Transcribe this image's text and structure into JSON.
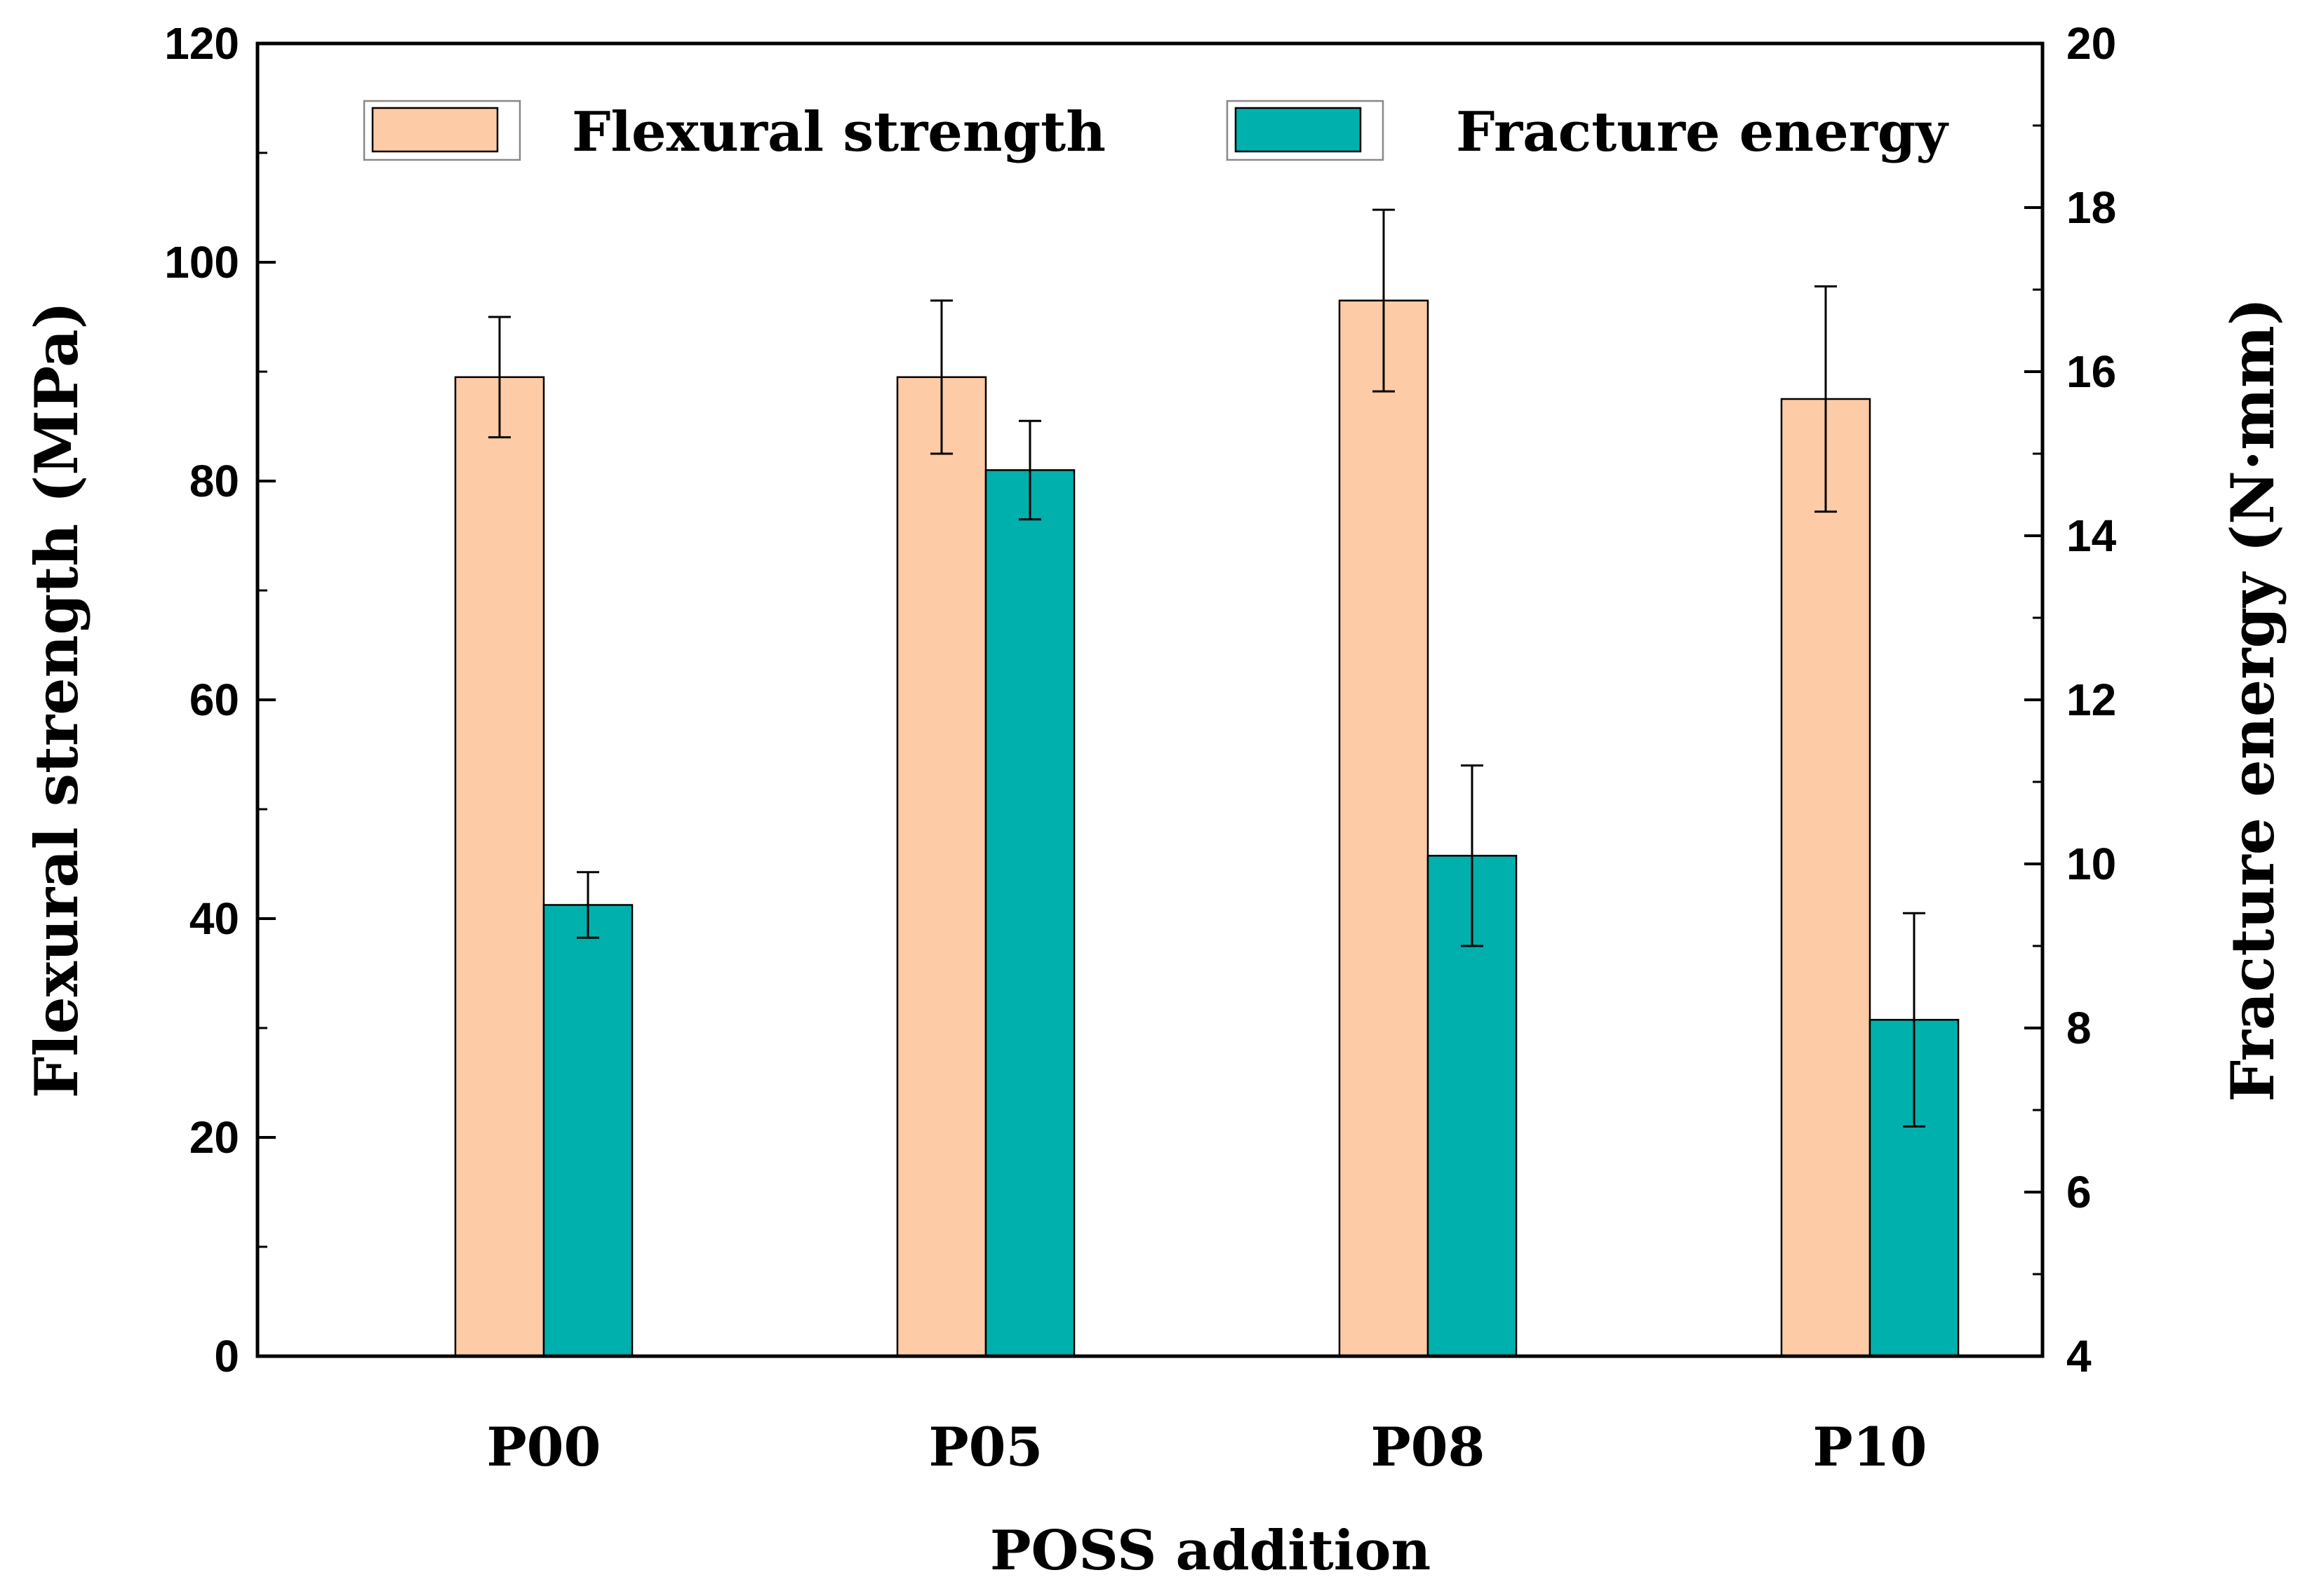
{
  "chart_data": {
    "type": "bar",
    "categories": [
      "P00",
      "P05",
      "P08",
      "P10"
    ],
    "xlabel": "POSS addition",
    "ylabel_left": "Flexural strength (MPa)",
    "ylabel_right": "Fracture energy (N·mm)",
    "ylim_left": [
      0,
      120
    ],
    "ylim_right": [
      4,
      20
    ],
    "yticks_left": [
      0,
      20,
      40,
      60,
      80,
      100,
      120
    ],
    "yticks_right": [
      4,
      6,
      8,
      10,
      12,
      14,
      16,
      18,
      20
    ],
    "legend_position": "top",
    "series": [
      {
        "name": "Flexural strength",
        "axis": "left",
        "color": "#FDCBA6",
        "values": [
          89.5,
          89.5,
          96.5,
          87.5
        ],
        "error": [
          5.5,
          7.0,
          8.3,
          10.3
        ]
      },
      {
        "name": "Fracture energy",
        "axis": "right",
        "color": "#00B0AC",
        "values": [
          9.5,
          14.8,
          10.1,
          8.1
        ],
        "error": [
          0.4,
          0.6,
          1.1,
          1.3
        ]
      }
    ]
  }
}
